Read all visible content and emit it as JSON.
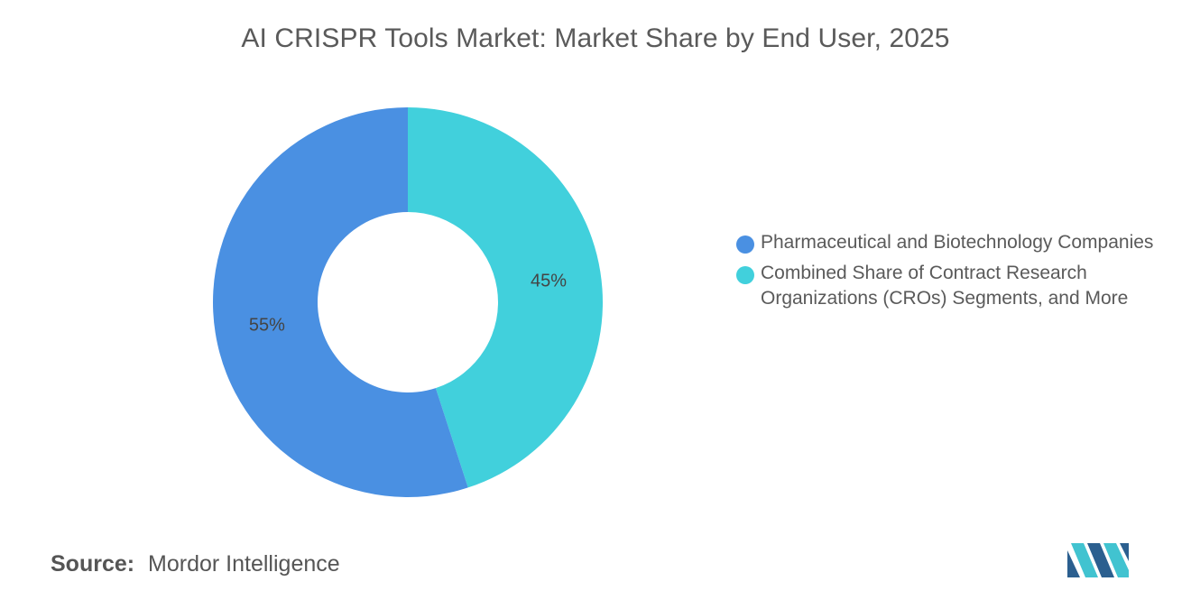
{
  "title": "AI CRISPR Tools Market: Market Share by End User, 2025",
  "chart_data": {
    "type": "pie",
    "donut": true,
    "title": "AI CRISPR Tools Market: Market Share by End User, 2025",
    "categories": [
      "Pharmaceutical and Biotechnology Companies",
      "Combined Share of Contract Research Organizations (CROs) Segments, and More"
    ],
    "values": [
      55,
      45
    ],
    "labels": [
      "55%",
      "45%"
    ],
    "colors": [
      "#4a90e2",
      "#41d0dc"
    ],
    "legend_position": "right"
  },
  "legend": {
    "items": [
      {
        "label": "Pharmaceutical and Biotechnology Companies",
        "color": "#4a90e2"
      },
      {
        "label": "Combined Share of Contract Research Organizations (CROs) Segments, and More",
        "color": "#41d0dc"
      }
    ]
  },
  "source": {
    "label": "Source:",
    "text": "Mordor Intelligence"
  },
  "logo": {
    "icon": "mordor-intelligence-logo",
    "colors": [
      "#2b5f8f",
      "#41c3d0"
    ]
  }
}
